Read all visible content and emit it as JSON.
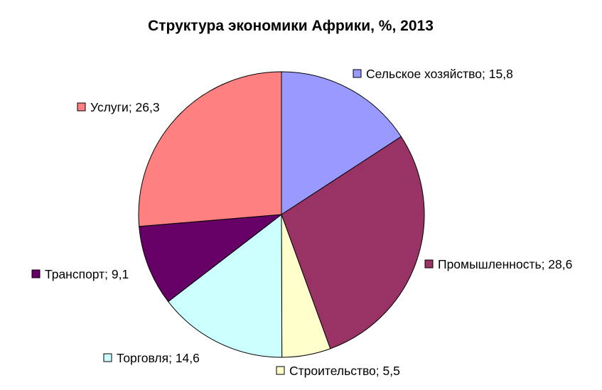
{
  "chart_data": {
    "type": "pie",
    "title": "Структура экономики Африки, %, 2013",
    "slices": [
      {
        "name": "Сельское хозяйство",
        "value": 15.8,
        "value_label": "15,8",
        "color": "#9999ff"
      },
      {
        "name": "Промышленность",
        "value": 28.6,
        "value_label": "28,6",
        "color": "#993366"
      },
      {
        "name": "Строительство",
        "value": 5.5,
        "value_label": "5,5",
        "color": "#ffffcc"
      },
      {
        "name": "Торговля",
        "value": 14.6,
        "value_label": "14,6",
        "color": "#ccffff"
      },
      {
        "name": "Транспорт",
        "value": 9.1,
        "value_label": "9,1",
        "color": "#660066"
      },
      {
        "name": "Услуги",
        "value": 26.3,
        "value_label": "26,3",
        "color": "#ff8080"
      }
    ],
    "start_angle": "12 o'clock",
    "direction": "clockwise",
    "data_labels": "category; value",
    "legend": "none"
  }
}
